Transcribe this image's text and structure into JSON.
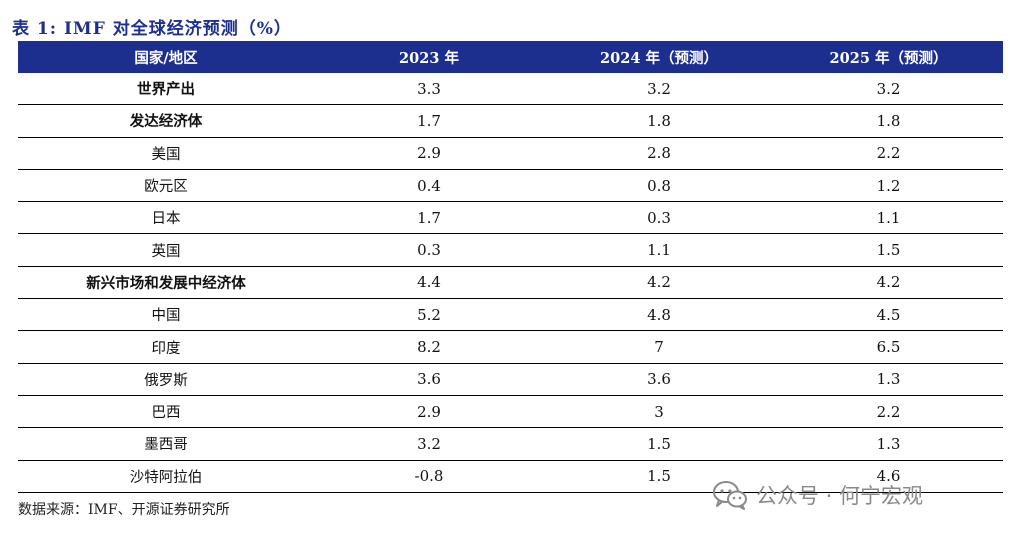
{
  "title": "表 1:  IMF 对全球经济预测（%）",
  "header": [
    "国家/地区",
    "2023 年",
    "2024 年（预测）",
    "2025 年（预测）"
  ],
  "rows": [
    {
      "name": "世界产出",
      "v2023": "3.3",
      "v2024": "3.2",
      "v2025": "3.2"
    },
    {
      "name": "发达经济体",
      "v2023": "1.7",
      "v2024": "1.8",
      "v2025": "1.8"
    },
    {
      "name": "美国",
      "v2023": "2.9",
      "v2024": "2.8",
      "v2025": "2.2"
    },
    {
      "name": "欧元区",
      "v2023": "0.4",
      "v2024": "0.8",
      "v2025": "1.2"
    },
    {
      "name": "日本",
      "v2023": "1.7",
      "v2024": "0.3",
      "v2025": "1.1"
    },
    {
      "name": "英国",
      "v2023": "0.3",
      "v2024": "1.1",
      "v2025": "1.5"
    },
    {
      "name": "新兴市场和发展中经济体",
      "v2023": "4.4",
      "v2024": "4.2",
      "v2025": "4.2"
    },
    {
      "name": "中国",
      "v2023": "5.2",
      "v2024": "4.8",
      "v2025": "4.5"
    },
    {
      "name": "印度",
      "v2023": "8.2",
      "v2024": "7",
      "v2025": "6.5"
    },
    {
      "name": "俄罗斯",
      "v2023": "3.6",
      "v2024": "3.6",
      "v2025": "1.3"
    },
    {
      "name": "巴西",
      "v2023": "2.9",
      "v2024": "3",
      "v2025": "2.2"
    },
    {
      "name": "墨西哥",
      "v2023": "3.2",
      "v2024": "1.5",
      "v2025": "1.3"
    },
    {
      "name": "沙特阿拉伯",
      "v2023": "-0.8",
      "v2024": "1.5",
      "v2025": "4.6"
    }
  ],
  "source": "数据来源：IMF、开源证券研究所",
  "watermark": {
    "text": "公众号 · 何宁宏观",
    "icon": "wechat-icon",
    "color": "#8a8a8a"
  },
  "colors": {
    "header_bg": "#1c2f8f",
    "title": "#1c2f8f"
  }
}
